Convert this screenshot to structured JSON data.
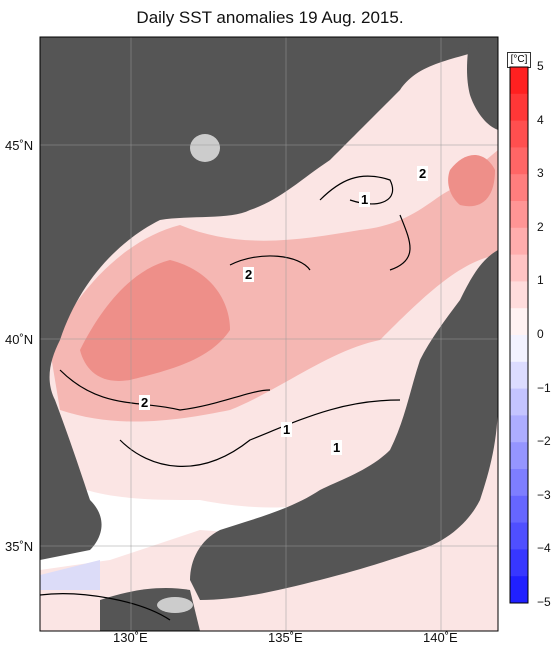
{
  "title": "Daily SST anomalies 19 Aug. 2015.",
  "unit": "[°C]",
  "lat_labels": [
    "45˚N",
    "40˚N",
    "35˚N"
  ],
  "lon_labels": [
    "130˚E",
    "135˚E",
    "140˚E"
  ],
  "colorbar": {
    "ticks": [
      "5",
      "4",
      "3",
      "2",
      "1",
      "0",
      "−1",
      "−2",
      "−3",
      "−4",
      "−5"
    ]
  },
  "contour_labels": [
    "2",
    "1",
    "2",
    "2",
    "1",
    "1"
  ],
  "colors": {
    "land": "#555555",
    "lake": "#cccccc",
    "anom_0_1": "#ffffff",
    "anom_1_2": "#f9d6d4",
    "anom_2_3": "#f3a9a5",
    "anom_3_4": "#ec8079",
    "neg": "#dcdcf8"
  }
}
